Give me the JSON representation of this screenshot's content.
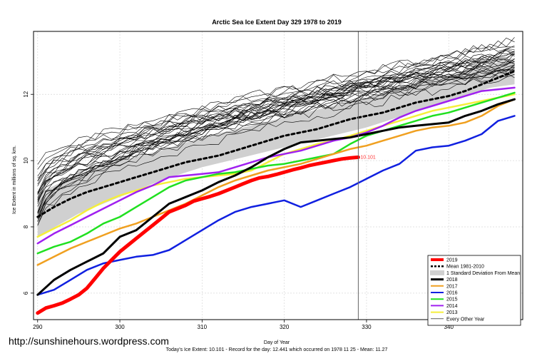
{
  "website": "http://sunshinehours.wordpress.com",
  "chart_data": {
    "type": "line",
    "title": "Arctic Sea Ice Extent Day 329 1978 to 2019",
    "xlabel": "Day of Year",
    "ylabel": "Ice Extent in millions of sq. km.",
    "xlim": [
      289.5,
      349
    ],
    "ylim": [
      5.2,
      13.9
    ],
    "xticks": [
      290,
      300,
      310,
      320,
      330,
      340
    ],
    "yticks": [
      6,
      8,
      10,
      12
    ],
    "grid": true,
    "legend_position": "bottom-right",
    "current_day": 329,
    "current_value_label": "10.101",
    "footer": "Today's Ice Extent: 10.101  - Record for the day: 12.441 which occurred on 1978 11 25  - Mean: 11.27",
    "background_years": {
      "label": "Every Other Year",
      "count": 30,
      "start_range": [
        8.0,
        9.9
      ],
      "end_range": [
        12.5,
        13.6
      ]
    },
    "std_band": {
      "label": "1 Standard Deviation From Mean",
      "x": [
        290,
        295,
        300,
        305,
        310,
        315,
        320,
        325,
        330,
        335,
        340,
        345,
        348
      ],
      "upper": [
        9.0,
        9.6,
        10.0,
        10.3,
        10.7,
        11.0,
        11.3,
        11.6,
        11.9,
        12.3,
        12.6,
        12.9,
        13.1
      ],
      "lower": [
        7.7,
        8.4,
        8.9,
        9.4,
        9.8,
        10.1,
        10.4,
        10.7,
        11.0,
        11.4,
        11.8,
        12.2,
        12.3
      ]
    },
    "series": [
      {
        "name": "Mean 1981-2010",
        "color": "#000000",
        "dash": true,
        "width": 3,
        "x": [
          290,
          292,
          294,
          296,
          298,
          300,
          302,
          304,
          306,
          308,
          310,
          312,
          314,
          316,
          318,
          320,
          322,
          324,
          326,
          328,
          330,
          332,
          334,
          336,
          338,
          340,
          342,
          344,
          346,
          348
        ],
        "values": [
          8.3,
          8.6,
          8.85,
          9.05,
          9.2,
          9.35,
          9.5,
          9.65,
          9.8,
          9.95,
          10.05,
          10.15,
          10.3,
          10.45,
          10.6,
          10.75,
          10.85,
          10.95,
          11.1,
          11.25,
          11.35,
          11.45,
          11.6,
          11.75,
          11.85,
          11.95,
          12.1,
          12.3,
          12.5,
          12.7
        ]
      },
      {
        "name": "2013",
        "color": "#f5ef3a",
        "width": 2.5,
        "x": [
          290,
          292,
          294,
          296,
          298,
          300,
          302,
          304,
          306,
          308,
          310,
          312,
          314,
          316,
          318,
          320,
          322,
          324,
          326,
          328,
          330,
          332,
          334,
          336,
          338,
          340,
          342,
          344,
          346,
          348
        ],
        "values": [
          7.7,
          7.95,
          8.2,
          8.5,
          8.75,
          8.95,
          9.1,
          9.25,
          9.35,
          9.45,
          9.5,
          9.55,
          9.6,
          9.7,
          9.95,
          10.2,
          10.35,
          10.5,
          10.6,
          10.75,
          10.9,
          11.05,
          11.2,
          11.35,
          11.5,
          11.6,
          11.7,
          11.8,
          11.9,
          12.0
        ]
      },
      {
        "name": "2014",
        "color": "#a020f0",
        "width": 2.5,
        "x": [
          290,
          292,
          294,
          296,
          298,
          300,
          302,
          304,
          306,
          308,
          310,
          312,
          314,
          316,
          318,
          320,
          322,
          324,
          326,
          328,
          330,
          332,
          334,
          336,
          338,
          340,
          342,
          344,
          346,
          348
        ],
        "values": [
          7.5,
          7.8,
          8.05,
          8.3,
          8.55,
          8.8,
          9.05,
          9.25,
          9.5,
          9.55,
          9.6,
          9.65,
          9.8,
          9.95,
          10.1,
          10.2,
          10.3,
          10.45,
          10.6,
          10.7,
          10.85,
          11.05,
          11.3,
          11.5,
          11.65,
          11.8,
          11.95,
          12.1,
          12.15,
          12.2
        ]
      },
      {
        "name": "2015",
        "color": "#20e020",
        "width": 2.5,
        "x": [
          290,
          292,
          294,
          296,
          298,
          300,
          302,
          304,
          306,
          308,
          310,
          312,
          314,
          316,
          318,
          320,
          322,
          324,
          326,
          328,
          330,
          332,
          334,
          336,
          338,
          340,
          342,
          344,
          346,
          348
        ],
        "values": [
          7.2,
          7.4,
          7.55,
          7.8,
          8.1,
          8.3,
          8.6,
          8.9,
          9.2,
          9.4,
          9.5,
          9.6,
          9.65,
          9.75,
          9.85,
          9.9,
          10.0,
          10.1,
          10.2,
          10.5,
          10.75,
          10.9,
          11.05,
          11.2,
          11.35,
          11.45,
          11.6,
          11.75,
          11.9,
          12.05
        ]
      },
      {
        "name": "2016",
        "color": "#1020e0",
        "width": 2.5,
        "x": [
          290,
          292,
          294,
          296,
          298,
          300,
          302,
          304,
          306,
          308,
          310,
          312,
          314,
          316,
          318,
          320,
          322,
          324,
          326,
          328,
          330,
          332,
          334,
          336,
          338,
          340,
          342,
          344,
          346,
          348
        ],
        "values": [
          5.95,
          6.1,
          6.4,
          6.7,
          6.9,
          7.0,
          7.1,
          7.15,
          7.3,
          7.6,
          7.9,
          8.2,
          8.45,
          8.6,
          8.7,
          8.8,
          8.6,
          8.8,
          9.0,
          9.2,
          9.45,
          9.7,
          9.9,
          10.3,
          10.4,
          10.45,
          10.6,
          10.8,
          11.2,
          11.35
        ]
      },
      {
        "name": "2017",
        "color": "#f0a020",
        "width": 2.5,
        "x": [
          290,
          292,
          294,
          296,
          298,
          300,
          302,
          304,
          306,
          308,
          310,
          312,
          314,
          316,
          318,
          320,
          322,
          324,
          326,
          328,
          330,
          332,
          334,
          336,
          338,
          340,
          342,
          344,
          346,
          348
        ],
        "values": [
          6.85,
          7.1,
          7.35,
          7.55,
          7.75,
          7.95,
          8.1,
          8.3,
          8.5,
          8.7,
          8.95,
          9.2,
          9.4,
          9.55,
          9.7,
          9.8,
          9.9,
          10.05,
          10.2,
          10.35,
          10.45,
          10.6,
          10.75,
          10.9,
          11.0,
          11.05,
          11.15,
          11.35,
          11.65,
          11.85
        ]
      },
      {
        "name": "2018",
        "color": "#000000",
        "width": 3,
        "x": [
          290,
          292,
          294,
          296,
          298,
          300,
          302,
          304,
          306,
          308,
          310,
          312,
          314,
          316,
          318,
          320,
          322,
          324,
          326,
          328,
          330,
          332,
          334,
          336,
          338,
          340,
          342,
          344,
          346,
          348
        ],
        "values": [
          5.95,
          6.4,
          6.7,
          6.95,
          7.2,
          7.7,
          7.9,
          8.3,
          8.7,
          8.9,
          9.1,
          9.35,
          9.55,
          9.8,
          10.1,
          10.35,
          10.55,
          10.6,
          10.65,
          10.7,
          10.8,
          10.9,
          11.0,
          11.05,
          11.1,
          11.15,
          11.35,
          11.5,
          11.7,
          11.85
        ]
      },
      {
        "name": "2019",
        "color": "#ff0000",
        "width": 5,
        "x": [
          290,
          291,
          292,
          293,
          294,
          295,
          296,
          297,
          298,
          299,
          300,
          301,
          302,
          303,
          304,
          305,
          306,
          307,
          308,
          309,
          310,
          311,
          312,
          313,
          314,
          315,
          316,
          317,
          318,
          319,
          320,
          321,
          322,
          323,
          324,
          325,
          326,
          327,
          328,
          329
        ],
        "values": [
          5.4,
          5.55,
          5.62,
          5.7,
          5.82,
          5.95,
          6.15,
          6.45,
          6.75,
          7.0,
          7.25,
          7.45,
          7.65,
          7.85,
          8.05,
          8.25,
          8.45,
          8.55,
          8.65,
          8.78,
          8.85,
          8.92,
          9.0,
          9.1,
          9.2,
          9.3,
          9.4,
          9.48,
          9.52,
          9.58,
          9.65,
          9.72,
          9.78,
          9.85,
          9.9,
          9.95,
          10.0,
          10.05,
          10.08,
          10.101
        ]
      }
    ]
  }
}
